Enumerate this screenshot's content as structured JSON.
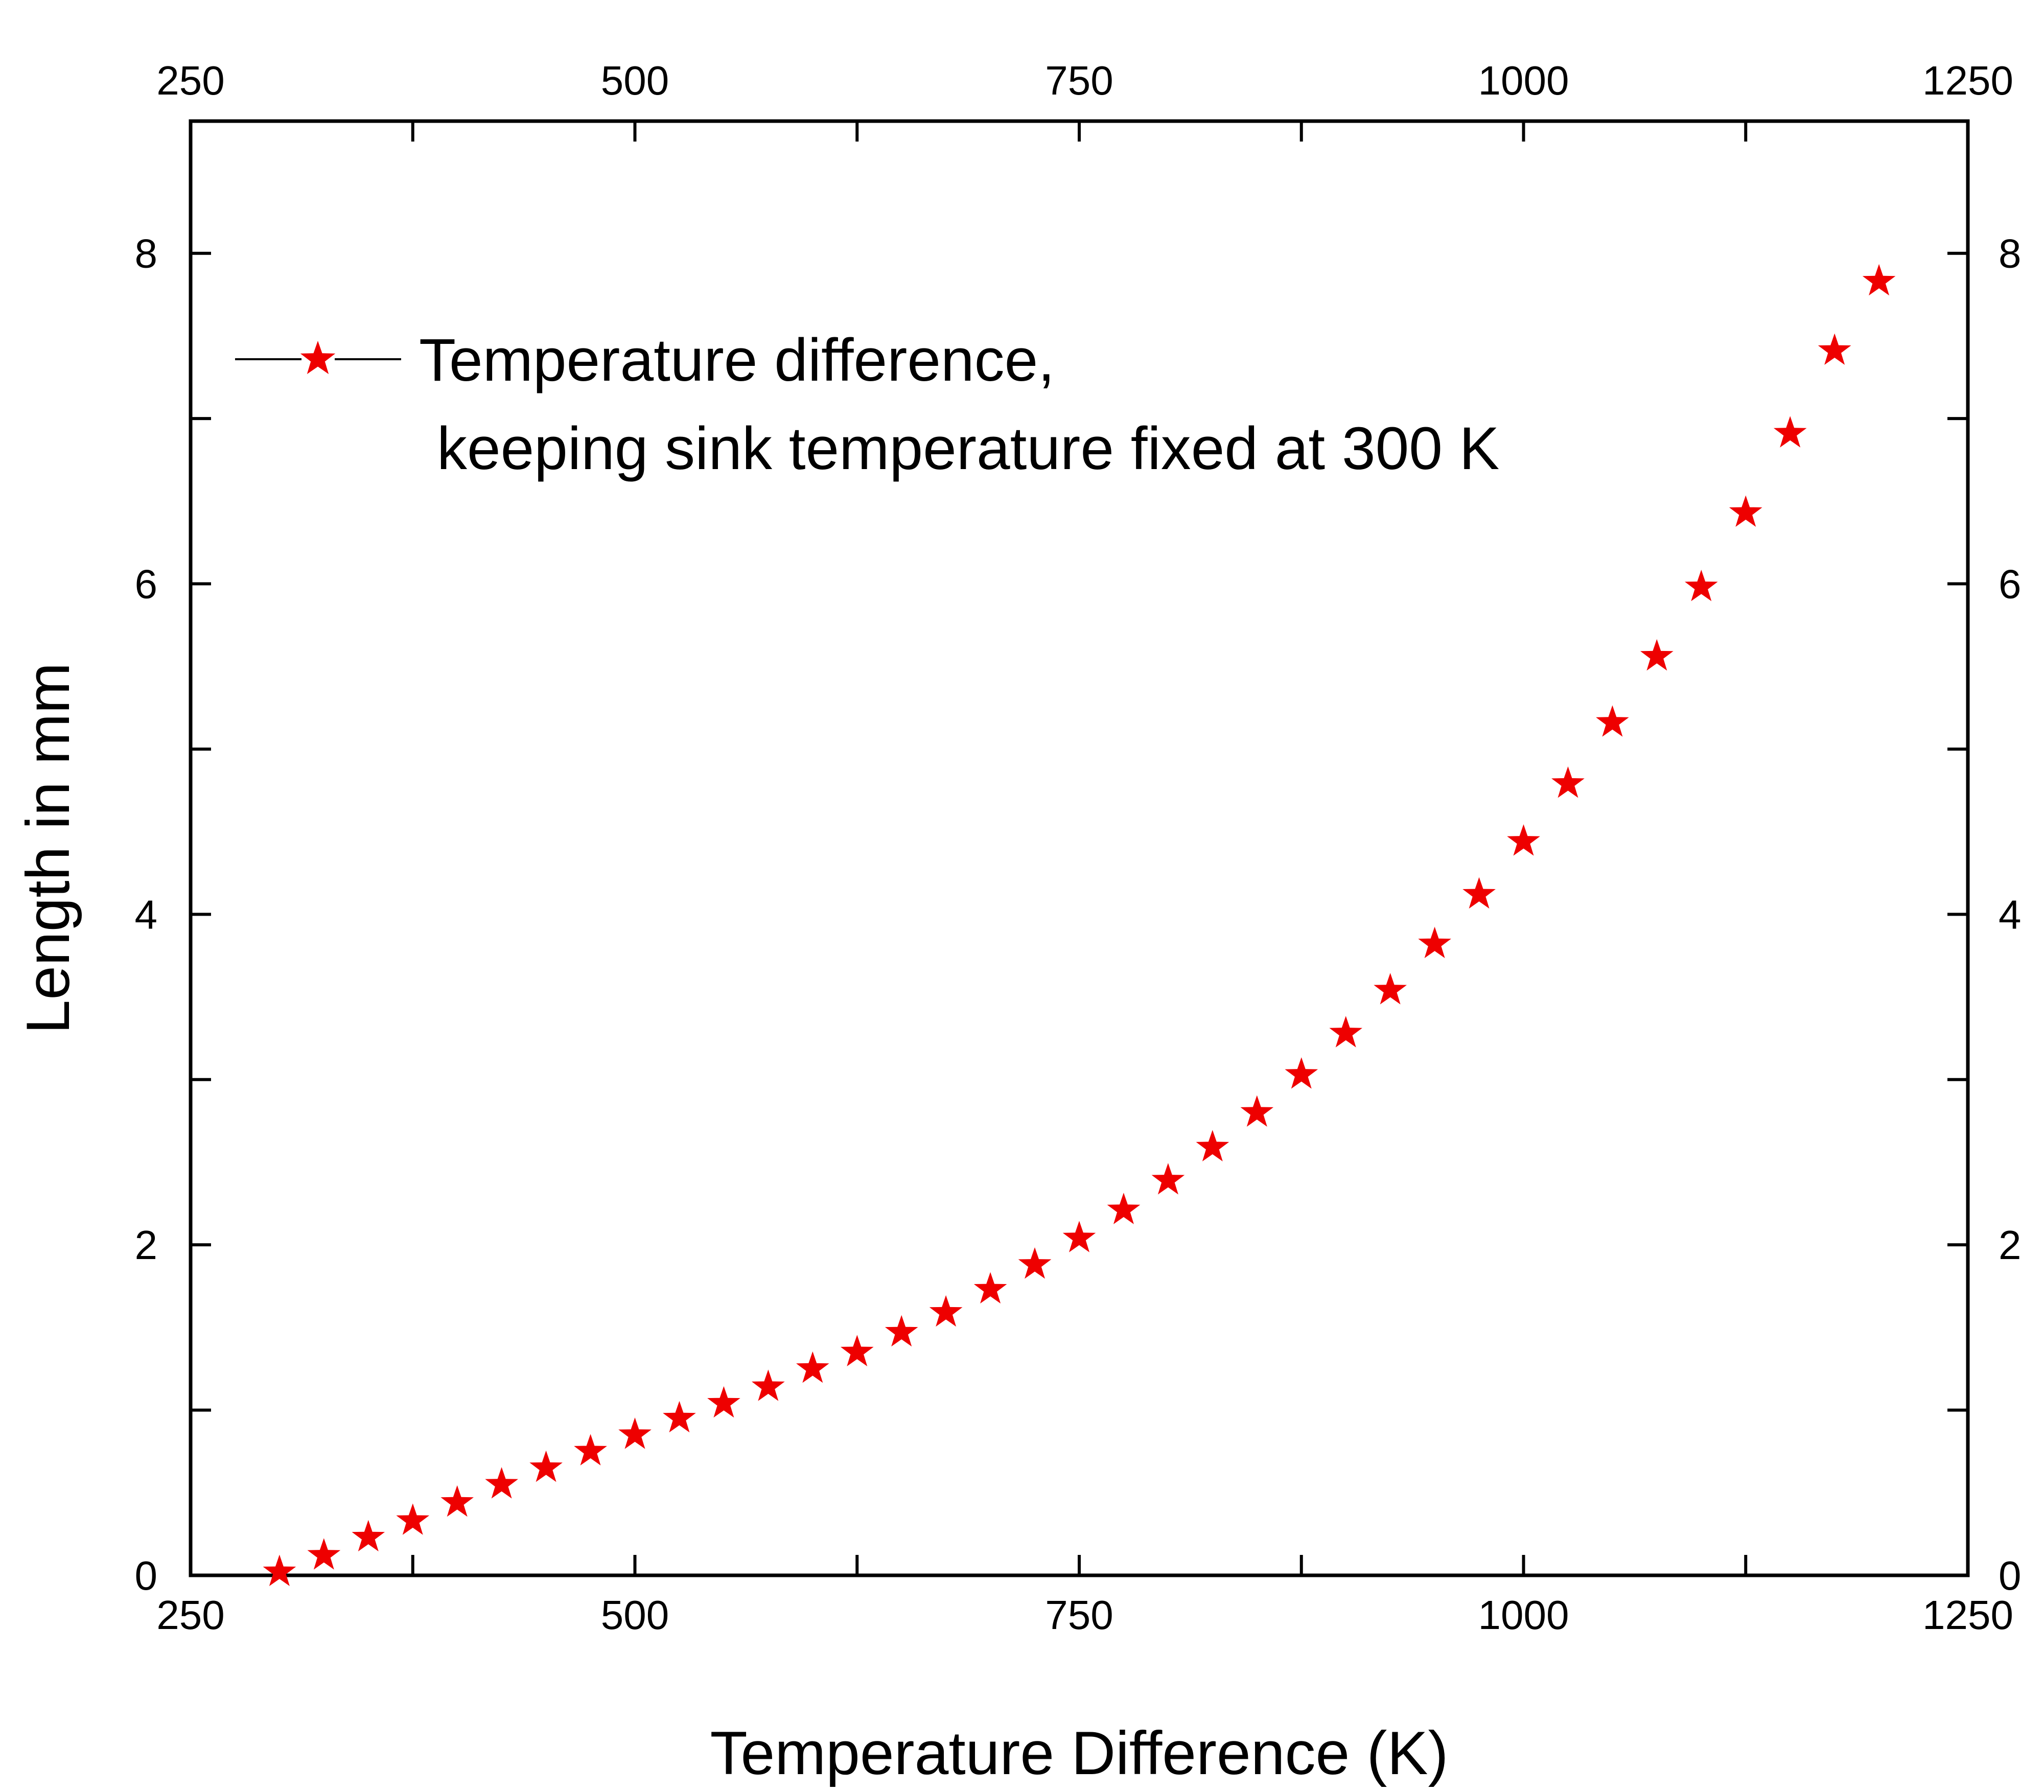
{
  "chart_data": {
    "type": "scatter",
    "title": "",
    "xlabel": "Temperature Difference (K)",
    "ylabel": "Length in mm",
    "xlim": [
      250,
      1250
    ],
    "ylim": [
      0,
      8.8
    ],
    "xticks": [
      "250",
      "500",
      "750",
      "1000",
      "1250"
    ],
    "yticks": [
      "0",
      "2",
      "4",
      "6",
      "8"
    ],
    "legend": {
      "line1": "Temperature difference,",
      "line2": "keeping sink temperature fixed at 300 K",
      "placement": "top-left"
    },
    "marker": "star",
    "color": "#ee0000",
    "series": [
      {
        "name": "Temperature difference, keeping sink temperature fixed at 300 K",
        "x": [
          300,
          325,
          350,
          375,
          400,
          425,
          450,
          475,
          500,
          525,
          550,
          575,
          600,
          625,
          650,
          675,
          700,
          725,
          750,
          775,
          800,
          825,
          850,
          875,
          900,
          925,
          950,
          975,
          1000,
          1025,
          1050,
          1075,
          1100,
          1125,
          1150,
          1175,
          1200
        ],
        "y": [
          0.02,
          0.12,
          0.23,
          0.33,
          0.44,
          0.55,
          0.65,
          0.75,
          0.85,
          0.95,
          1.04,
          1.14,
          1.25,
          1.35,
          1.47,
          1.59,
          1.73,
          1.88,
          2.04,
          2.21,
          2.39,
          2.59,
          2.8,
          3.03,
          3.28,
          3.54,
          3.82,
          4.12,
          4.44,
          4.79,
          5.16,
          5.56,
          5.98,
          6.43,
          6.91,
          7.41,
          7.83
        ]
      }
    ]
  }
}
